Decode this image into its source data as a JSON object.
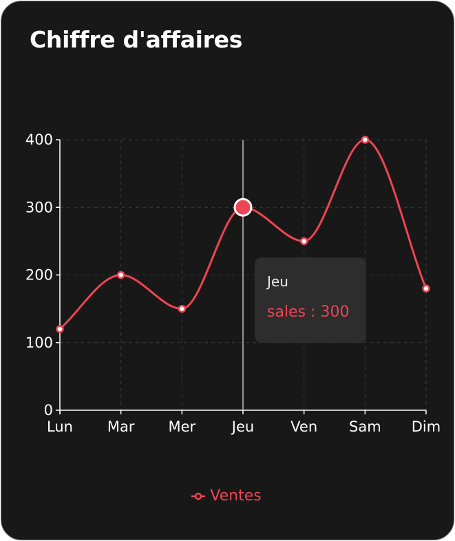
{
  "card": {
    "title": "Chiffre d'affaires"
  },
  "chart_data": {
    "type": "line",
    "categories": [
      "Lun",
      "Mar",
      "Mer",
      "Jeu",
      "Ven",
      "Sam",
      "Dim"
    ],
    "series": [
      {
        "name": "Ventes",
        "key": "sales",
        "values": [
          120,
          200,
          150,
          300,
          250,
          400,
          180
        ],
        "color": "#ef4453"
      }
    ],
    "yticks": [
      0,
      100,
      200,
      300,
      400
    ],
    "ylim": [
      0,
      400
    ],
    "grid": true,
    "legend_position": "bottom-center",
    "active_category": "Jeu"
  },
  "tooltip": {
    "label": "Jeu",
    "value_text": "sales : 300"
  },
  "legend": {
    "label": "Ventes"
  },
  "colors": {
    "background": "#181818",
    "series": "#ef4453",
    "axis": "#ffffff",
    "grid": "#3a3a3a",
    "tooltip_bg": "#2d2d2d"
  }
}
